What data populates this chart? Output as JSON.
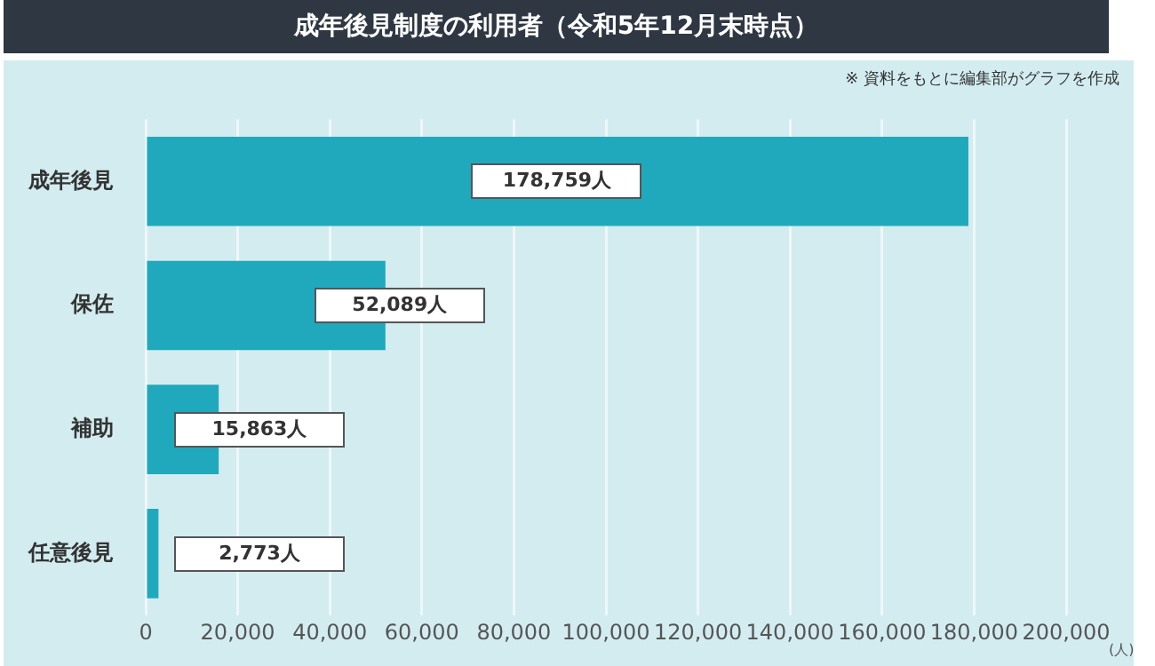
{
  "chart_data": {
    "type": "bar",
    "orientation": "horizontal",
    "title": "成年後見制度の利用者（令和5年12月末時点）",
    "xlabel": "(人)",
    "annotations": [
      "※ 資料をもとに編集部がグラフを作成"
    ],
    "categories": [
      "成年後見",
      "保佐",
      "補助",
      "任意後見"
    ],
    "values": [
      178759,
      52089,
      15863,
      2773
    ],
    "color": "#20a9bd",
    "value_labels": [
      "178,759人",
      "52,089人",
      "15,863人",
      "2,773人"
    ],
    "xlim": [
      0,
      200000
    ],
    "xticks": [
      {
        "value": 0,
        "label": "0"
      },
      {
        "value": 20000,
        "label": "20,000"
      },
      {
        "value": 40000,
        "label": "40,000"
      },
      {
        "value": 60000,
        "label": "60,000"
      },
      {
        "value": 80000,
        "label": "80,000"
      },
      {
        "value": 100000,
        "label": "100,000"
      },
      {
        "value": 120000,
        "label": "120,000"
      },
      {
        "value": 140000,
        "label": "140,000"
      },
      {
        "value": 160000,
        "label": "160,000"
      },
      {
        "value": 180000,
        "label": "180,000"
      },
      {
        "value": 200000,
        "label": "200,000"
      }
    ],
    "grid": "x",
    "legend": false
  }
}
